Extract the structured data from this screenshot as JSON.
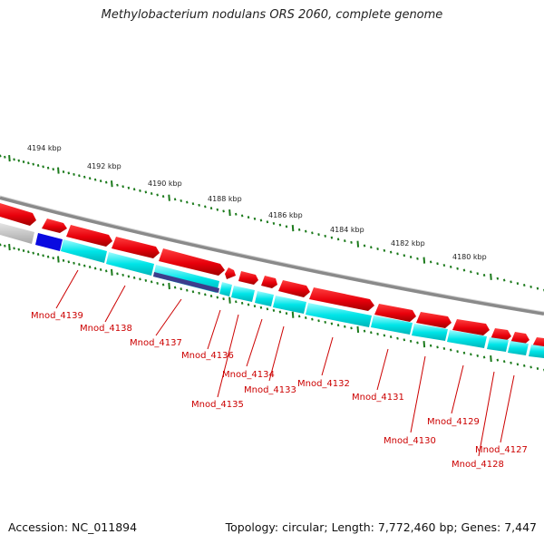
{
  "title": "Methylobacterium nodulans ORS 2060, complete genome",
  "footer": {
    "accession": "Accession: NC_011894",
    "summary": "Topology: circular; Length: 7,772,460 bp; Genes: 7,447"
  },
  "colors": {
    "forward_gene": "#e8000b",
    "cds": "#00e5e8",
    "rna": "#4a4a9a",
    "blue_cds": "#0000e0",
    "backbone": "#8a8a8a",
    "tick": "#1b7a1b",
    "label": "#cc0000"
  },
  "scale_labels": [
    "4194 kbp",
    "4192 kbp",
    "4190 kbp",
    "4188 kbp",
    "4186 kbp",
    "4184 kbp",
    "4182 kbp",
    "4180 kbp"
  ],
  "gene_labels": [
    "Mnod_4139",
    "Mnod_4138",
    "Mnod_4137",
    "Mnod_4136",
    "Mnod_4135",
    "Mnod_4134",
    "Mnod_4133",
    "Mnod_4132",
    "Mnod_4131",
    "Mnod_4130",
    "Mnod_4129",
    "Mnod_4128",
    "Mnod_4127"
  ]
}
